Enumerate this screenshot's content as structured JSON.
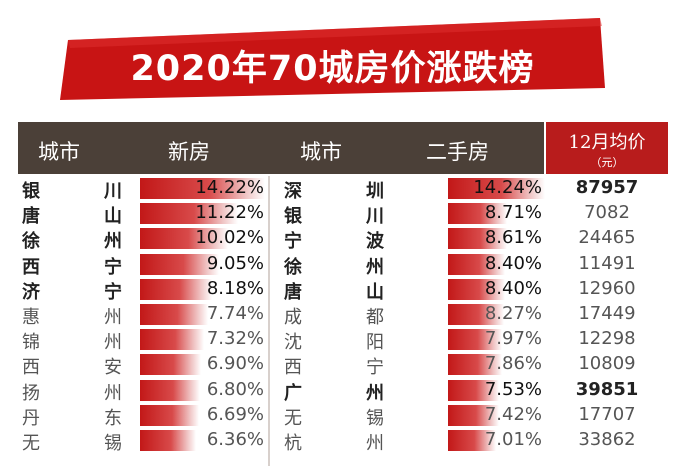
{
  "title": "2020年70城房价涨跌榜",
  "header": {
    "city_col": "城市",
    "new_col": "新房",
    "city_col2": "城市",
    "second_col": "二手房",
    "price_col": "12月均价",
    "price_unit": "（元）"
  },
  "chart_data": {
    "type": "table",
    "title": "2020年70城房价涨跌榜",
    "columns": [
      "城市",
      "新房",
      "城市",
      "二手房",
      "12月均价（元）"
    ],
    "max_pct": 14.24,
    "rows": [
      {
        "new_c1": "银",
        "new_c2": "川",
        "new_pct": 14.22,
        "new_label": "14.22%",
        "sec_c1": "深",
        "sec_c2": "圳",
        "sec_pct": 14.24,
        "sec_label": "14.24%",
        "price": "87957",
        "bold_new": true,
        "bold_sec": true,
        "bold_price": true
      },
      {
        "new_c1": "唐",
        "new_c2": "山",
        "new_pct": 11.22,
        "new_label": "11.22%",
        "sec_c1": "银",
        "sec_c2": "川",
        "sec_pct": 8.71,
        "sec_label": "8.71%",
        "price": "7082",
        "bold_new": true,
        "bold_sec": true,
        "bold_price": false
      },
      {
        "new_c1": "徐",
        "new_c2": "州",
        "new_pct": 10.02,
        "new_label": "10.02%",
        "sec_c1": "宁",
        "sec_c2": "波",
        "sec_pct": 8.61,
        "sec_label": "8.61%",
        "price": "24465",
        "bold_new": true,
        "bold_sec": true,
        "bold_price": false
      },
      {
        "new_c1": "西",
        "new_c2": "宁",
        "new_pct": 9.05,
        "new_label": "9.05%",
        "sec_c1": "徐",
        "sec_c2": "州",
        "sec_pct": 8.4,
        "sec_label": "8.40%",
        "price": "11491",
        "bold_new": true,
        "bold_sec": true,
        "bold_price": false
      },
      {
        "new_c1": "济",
        "new_c2": "宁",
        "new_pct": 8.18,
        "new_label": "8.18%",
        "sec_c1": "唐",
        "sec_c2": "山",
        "sec_pct": 8.4,
        "sec_label": "8.40%",
        "price": "12960",
        "bold_new": true,
        "bold_sec": true,
        "bold_price": false
      },
      {
        "new_c1": "惠",
        "new_c2": "州",
        "new_pct": 7.74,
        "new_label": "7.74%",
        "sec_c1": "成",
        "sec_c2": "都",
        "sec_pct": 8.27,
        "sec_label": "8.27%",
        "price": "17449",
        "bold_new": false,
        "bold_sec": false,
        "bold_price": false
      },
      {
        "new_c1": "锦",
        "new_c2": "州",
        "new_pct": 7.32,
        "new_label": "7.32%",
        "sec_c1": "沈",
        "sec_c2": "阳",
        "sec_pct": 7.97,
        "sec_label": "7.97%",
        "price": "12298",
        "bold_new": false,
        "bold_sec": false,
        "bold_price": false
      },
      {
        "new_c1": "西",
        "new_c2": "安",
        "new_pct": 6.9,
        "new_label": "6.90%",
        "sec_c1": "西",
        "sec_c2": "宁",
        "sec_pct": 7.86,
        "sec_label": "7.86%",
        "price": "10809",
        "bold_new": false,
        "bold_sec": false,
        "bold_price": false
      },
      {
        "new_c1": "扬",
        "new_c2": "州",
        "new_pct": 6.8,
        "new_label": "6.80%",
        "sec_c1": "广",
        "sec_c2": "州",
        "sec_pct": 7.53,
        "sec_label": "7.53%",
        "price": "39851",
        "bold_new": false,
        "bold_sec": true,
        "bold_price": true
      },
      {
        "new_c1": "丹",
        "new_c2": "东",
        "new_pct": 6.69,
        "new_label": "6.69%",
        "sec_c1": "无",
        "sec_c2": "锡",
        "sec_pct": 7.42,
        "sec_label": "7.42%",
        "price": "17707",
        "bold_new": false,
        "bold_sec": false,
        "bold_price": false
      },
      {
        "new_c1": "无",
        "new_c2": "锡",
        "new_pct": 6.36,
        "new_label": "6.36%",
        "sec_c1": "杭",
        "sec_c2": "州",
        "sec_pct": 7.01,
        "sec_label": "7.01%",
        "price": "33862",
        "bold_new": false,
        "bold_sec": false,
        "bold_price": false
      }
    ]
  }
}
